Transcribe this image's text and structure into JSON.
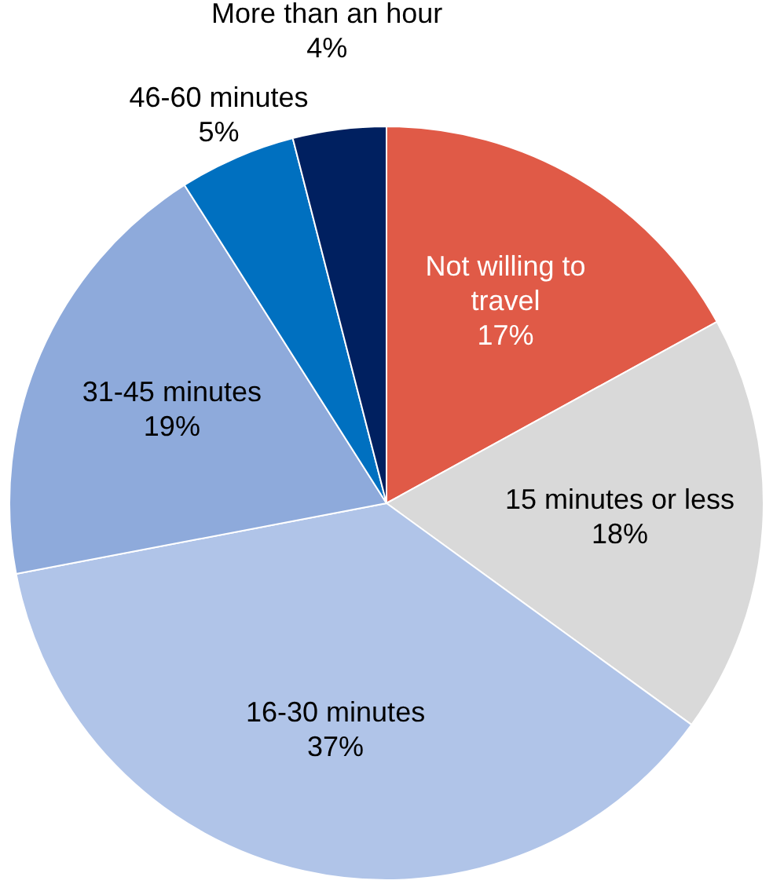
{
  "chart_data": {
    "type": "pie",
    "categories": [
      "Not willing to travel",
      "15 minutes or less",
      "16-30 minutes",
      "31-45 minutes",
      "46-60 minutes",
      "More than an hour"
    ],
    "values": [
      17,
      18,
      37,
      19,
      5,
      4
    ],
    "value_labels": [
      "17%",
      "18%",
      "37%",
      "19%",
      "5%",
      "4%"
    ],
    "colors": [
      "#e05a47",
      "#d9d9d9",
      "#b0c4e8",
      "#8eaadb",
      "#0070c0",
      "#002060"
    ],
    "legend": false
  }
}
